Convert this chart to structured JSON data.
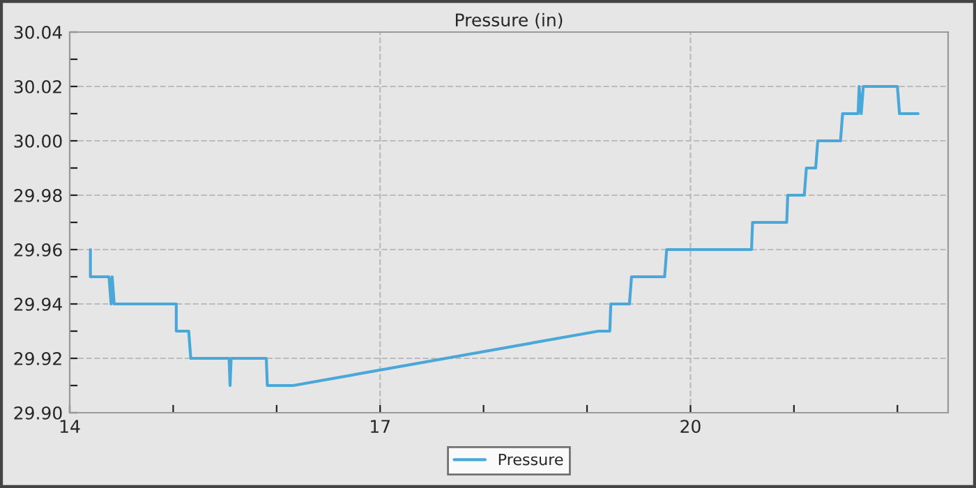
{
  "chart_data": {
    "type": "line",
    "title": "Pressure (in)",
    "x": [
      14.2,
      14.2,
      14.38,
      14.4,
      14.41,
      14.43,
      15.03,
      15.03,
      15.15,
      15.17,
      15.54,
      15.55,
      15.56,
      15.9,
      15.91,
      16.16,
      19.11,
      19.22,
      19.23,
      19.41,
      19.43,
      19.75,
      19.77,
      20.59,
      20.6,
      20.93,
      20.94,
      21.1,
      21.12,
      21.21,
      21.23,
      21.45,
      21.47,
      21.62,
      21.63,
      21.65,
      21.67,
      22.0,
      22.02,
      22.2
    ],
    "series": [
      {
        "name": "Pressure",
        "color": "#4aa8d8",
        "values": [
          29.96,
          29.95,
          29.95,
          29.94,
          29.95,
          29.94,
          29.94,
          29.93,
          29.93,
          29.92,
          29.92,
          29.91,
          29.92,
          29.92,
          29.91,
          29.91,
          29.93,
          29.93,
          29.94,
          29.94,
          29.95,
          29.95,
          29.96,
          29.96,
          29.97,
          29.97,
          29.98,
          29.98,
          29.99,
          29.99,
          30.0,
          30.0,
          30.01,
          30.01,
          30.02,
          30.01,
          30.02,
          30.02,
          30.01,
          30.01
        ]
      }
    ],
    "xlim": [
      14,
      22.49
    ],
    "ylim": [
      29.9,
      30.04
    ],
    "xticks": [
      14,
      {
        "value": 15,
        "label": null
      },
      {
        "value": 16,
        "label": null
      },
      17,
      {
        "value": 18,
        "label": null
      },
      {
        "value": 19,
        "label": null
      },
      20,
      {
        "value": 21,
        "label": null
      },
      {
        "value": 22,
        "label": null
      }
    ],
    "yticks": [
      {
        "value": 29.9,
        "label": "29.90"
      },
      {
        "value": 29.91,
        "label": null
      },
      {
        "value": 29.92,
        "label": "29.92"
      },
      {
        "value": 29.93,
        "label": null
      },
      {
        "value": 29.94,
        "label": "29.94"
      },
      {
        "value": 29.95,
        "label": null
      },
      {
        "value": 29.96,
        "label": "29.96"
      },
      {
        "value": 29.97,
        "label": null
      },
      {
        "value": 29.98,
        "label": "29.98"
      },
      {
        "value": 29.99,
        "label": null
      },
      {
        "value": 30.0,
        "label": "30.00"
      },
      {
        "value": 30.01,
        "label": null
      },
      {
        "value": 30.02,
        "label": "30.02"
      },
      {
        "value": 30.03,
        "label": null
      },
      {
        "value": 30.04,
        "label": "30.04"
      }
    ],
    "grid": true,
    "legend": "bottom",
    "line_style": "solid",
    "marker": "none"
  }
}
